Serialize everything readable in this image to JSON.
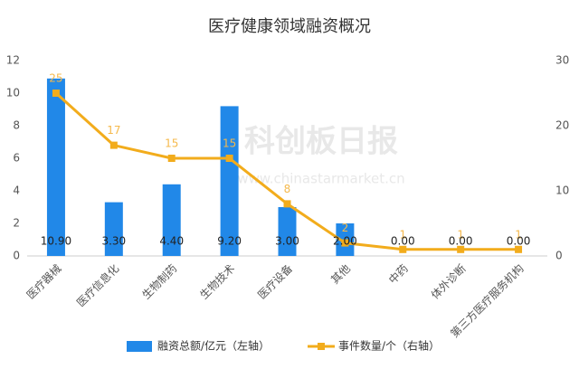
{
  "chart_data": {
    "type": "bar",
    "title": "医疗健康领域融资概况",
    "categories": [
      "医疗器械",
      "医疗信息化",
      "生物制药",
      "生物技术",
      "医疗设备",
      "其他",
      "中药",
      "体外诊断",
      "第三方医疗服务机构"
    ],
    "series": [
      {
        "name": "融资总额/亿元（左轴）",
        "type": "bar",
        "color": "#2188e8",
        "values": [
          10.9,
          3.3,
          4.4,
          9.2,
          3.0,
          2.0,
          0,
          0,
          0
        ],
        "value_labels": [
          "10.90",
          "3.30",
          "4.40",
          "9.20",
          "3.00",
          "2.00",
          "0.00",
          "0.00",
          "0.00"
        ]
      },
      {
        "name": "事件数量/个（右轴）",
        "type": "line",
        "axis": "y2",
        "color": "#f2ac1c",
        "values": [
          25,
          17,
          15,
          15,
          8,
          2,
          1,
          1,
          1
        ]
      }
    ],
    "ylim": [
      0,
      12
    ],
    "yticks": [
      0,
      2,
      4,
      6,
      8,
      10,
      12
    ],
    "y2lim": [
      0,
      30
    ],
    "y2ticks": [
      0,
      10,
      20,
      30
    ],
    "watermark": "科创板日报",
    "watermark_url": "www.chinastarmarket.cn"
  }
}
